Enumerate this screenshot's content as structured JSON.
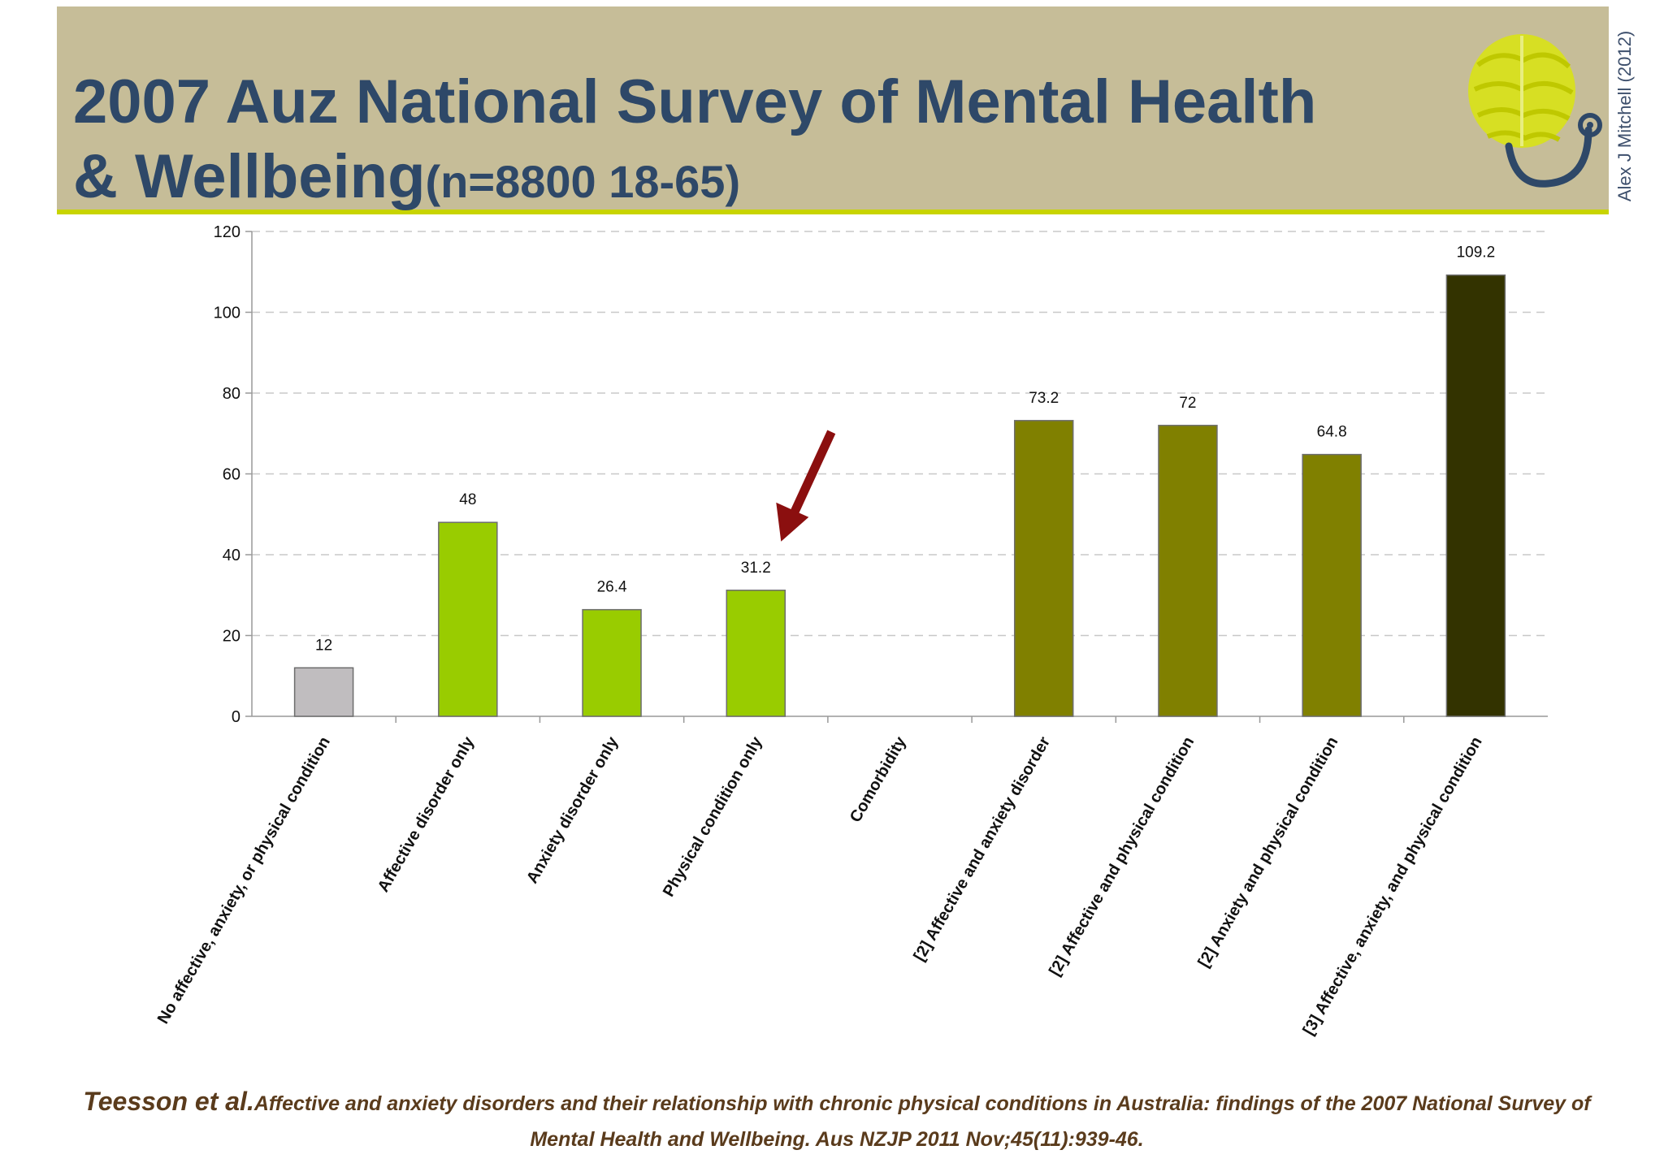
{
  "header": {
    "title_line1": "2007 Auz National Survey of Mental Health",
    "title_line2_main": "& Wellbeing",
    "title_line2_sub": "(n=8800 18-65)",
    "author_credit": "Alex J Mitchell (2012)"
  },
  "citation": {
    "authors": "Teesson et al.",
    "text": "Affective and anxiety disorders and their relationship with chronic physical conditions in Australia: findings of the 2007 National Survey of Mental Health and Wellbeing. Aus NZJP 2011 Nov;45(11):939-46."
  },
  "chart_data": {
    "type": "bar",
    "title": "",
    "xlabel": "",
    "ylabel": "",
    "ylim": [
      0,
      120
    ],
    "yticks": [
      0,
      20,
      40,
      60,
      80,
      100,
      120
    ],
    "grid": true,
    "categories": [
      "No affective, anxiety, or physical condition",
      "Affective disorder only",
      "Anxiety disorder only",
      "Physical condition only",
      "Comorbidity",
      "[2] Affective and anxiety disorder",
      "[2] Affective and physical condition",
      "[2] Anxiety and physical condition",
      "[3] Affective, anxiety, and physical condition"
    ],
    "values": [
      12,
      48,
      26.4,
      31.2,
      null,
      73.2,
      72,
      64.8,
      109.2
    ],
    "data_labels": [
      "12",
      "48",
      "26.4",
      "31.2",
      "",
      "73.2",
      "72",
      "64.8",
      "109.2"
    ],
    "bar_colors": [
      "#c0bdbf",
      "#99cc00",
      "#99cc00",
      "#99cc00",
      "",
      "#808000",
      "#808000",
      "#808000",
      "#333300"
    ],
    "annotation": {
      "type": "arrow",
      "color": "#8b0f0f",
      "points_to_category": "Physical condition only"
    }
  }
}
